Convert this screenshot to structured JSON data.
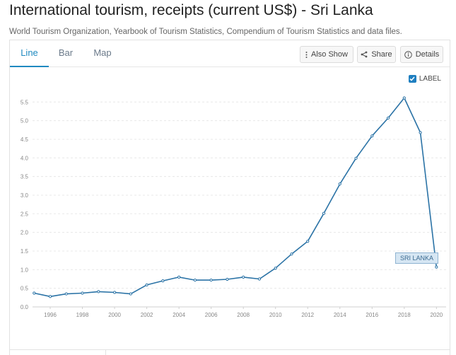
{
  "header": {
    "title": "International tourism, receipts (current US$) - Sri Lanka",
    "source": "World Tourism Organization, Yearbook of Tourism Statistics, Compendium of Tourism Statistics and data files."
  },
  "tabs": [
    {
      "label": "Line",
      "active": true
    },
    {
      "label": "Bar",
      "active": false
    },
    {
      "label": "Map",
      "active": false
    }
  ],
  "toolbar": {
    "also_show": "Also Show",
    "share": "Share",
    "details": "Details"
  },
  "label_toggle": {
    "text": "LABEL",
    "checked": true
  },
  "colors": {
    "accent": "#1f8ac0",
    "line": "#2b73a6",
    "label_bg": "#d6e6f3"
  },
  "chart_data": {
    "type": "line",
    "title": "",
    "xlabel": "",
    "ylabel": "",
    "x": [
      1995,
      1996,
      1997,
      1998,
      1999,
      2000,
      2001,
      2002,
      2003,
      2004,
      2005,
      2006,
      2007,
      2008,
      2009,
      2010,
      2011,
      2012,
      2013,
      2014,
      2015,
      2016,
      2017,
      2018,
      2019,
      2020
    ],
    "series": [
      {
        "name": "SRI LANKA",
        "values": [
          0.37,
          0.28,
          0.35,
          0.37,
          0.41,
          0.39,
          0.35,
          0.59,
          0.7,
          0.8,
          0.72,
          0.72,
          0.74,
          0.8,
          0.75,
          1.04,
          1.42,
          1.76,
          2.51,
          3.3,
          3.99,
          4.59,
          5.07,
          5.61,
          4.68,
          1.07
        ]
      }
    ],
    "xticks": [
      "1996",
      "1998",
      "2000",
      "2002",
      "2004",
      "2006",
      "2008",
      "2010",
      "2012",
      "2014",
      "2016",
      "2018",
      "2020"
    ],
    "yticks": [
      "0.0",
      "0.5",
      "1.0",
      "1.5",
      "2.0",
      "2.5",
      "3.0",
      "3.5",
      "4.0",
      "4.5",
      "5.0",
      "5.5"
    ],
    "ylim": [
      0,
      5.6
    ],
    "xlim": [
      1994.9,
      2020.6
    ],
    "grid": true,
    "legend": "none"
  }
}
